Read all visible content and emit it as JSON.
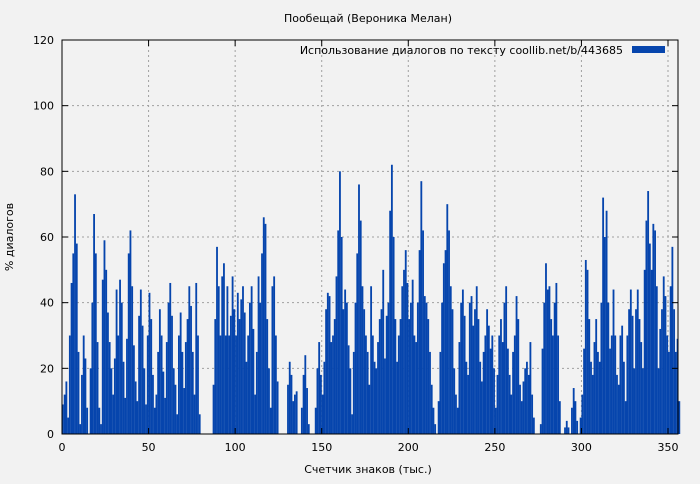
{
  "chart_data": {
    "type": "bar",
    "title": "Пообещай (Вероника Мелан)",
    "xlabel": "Счетчик знаков (тыс.)",
    "ylabel": "% диалогов",
    "xlim": [
      0,
      357
    ],
    "ylim": [
      0,
      120
    ],
    "xticks": [
      0,
      50,
      100,
      150,
      200,
      250,
      300,
      350
    ],
    "yticks": [
      0,
      20,
      40,
      60,
      80,
      100,
      120
    ],
    "grid": true,
    "legend_position": "top-right",
    "series": [
      {
        "name": "Использование диалогов по тексту  coollib.net/b/443685",
        "color": "#0645ad",
        "values": [
          9,
          12,
          16,
          5,
          30,
          46,
          55,
          73,
          58,
          25,
          3,
          18,
          30,
          23,
          8,
          0,
          20,
          40,
          67,
          55,
          28,
          8,
          3,
          47,
          59,
          50,
          37,
          28,
          20,
          12,
          23,
          44,
          30,
          47,
          40,
          22,
          11,
          29,
          55,
          62,
          45,
          27,
          16,
          10,
          36,
          44,
          33,
          20,
          9,
          30,
          43,
          35,
          18,
          8,
          12,
          25,
          38,
          30,
          19,
          11,
          28,
          40,
          46,
          36,
          20,
          15,
          6,
          30,
          37,
          25,
          14,
          28,
          35,
          45,
          39,
          25,
          12,
          46,
          30,
          6,
          0,
          0,
          0,
          0,
          0,
          0,
          0,
          15,
          35,
          57,
          45,
          30,
          48,
          52,
          30,
          45,
          30,
          36,
          48,
          38,
          30,
          43,
          35,
          41,
          45,
          37,
          22,
          30,
          40,
          45,
          32,
          12,
          25,
          48,
          40,
          55,
          66,
          64,
          35,
          20,
          8,
          45,
          48,
          30,
          16,
          0,
          0,
          0,
          0,
          0,
          15,
          22,
          18,
          10,
          12,
          13,
          0,
          0,
          8,
          18,
          24,
          14,
          3,
          0,
          0,
          0,
          8,
          20,
          28,
          18,
          12,
          22,
          38,
          43,
          42,
          28,
          30,
          35,
          48,
          62,
          80,
          60,
          38,
          44,
          40,
          27,
          20,
          6,
          25,
          40,
          55,
          76,
          65,
          45,
          38,
          30,
          25,
          15,
          45,
          30,
          22,
          20,
          28,
          35,
          38,
          50,
          23,
          36,
          40,
          68,
          82,
          60,
          35,
          22,
          30,
          35,
          45,
          50,
          56,
          46,
          35,
          40,
          47,
          30,
          28,
          40,
          56,
          77,
          62,
          42,
          40,
          35,
          25,
          15,
          8,
          3,
          0,
          10,
          25,
          40,
          52,
          56,
          70,
          62,
          45,
          38,
          20,
          12,
          8,
          28,
          40,
          44,
          36,
          22,
          18,
          40,
          42,
          33,
          38,
          45,
          35,
          22,
          16,
          25,
          30,
          38,
          33,
          26,
          30,
          20,
          8,
          18,
          30,
          35,
          28,
          40,
          45,
          26,
          18,
          12,
          25,
          30,
          42,
          35,
          15,
          10,
          16,
          20,
          22,
          18,
          28,
          12,
          5,
          0,
          0,
          0,
          3,
          26,
          40,
          52,
          44,
          45,
          35,
          30,
          40,
          46,
          30,
          10,
          0,
          0,
          2,
          4,
          2,
          0,
          8,
          14,
          10,
          4,
          0,
          5,
          12,
          26,
          53,
          50,
          35,
          22,
          18,
          28,
          35,
          25,
          22,
          40,
          72,
          60,
          68,
          40,
          26,
          30,
          44,
          30,
          18,
          15,
          30,
          33,
          22,
          10,
          30,
          38,
          44,
          36,
          20,
          38,
          44,
          35,
          28,
          20,
          50,
          65,
          74,
          58,
          50,
          64,
          62,
          45,
          20,
          32,
          38,
          48,
          42,
          30,
          25,
          45,
          57,
          38,
          25,
          29,
          10,
          0
        ]
      }
    ]
  }
}
